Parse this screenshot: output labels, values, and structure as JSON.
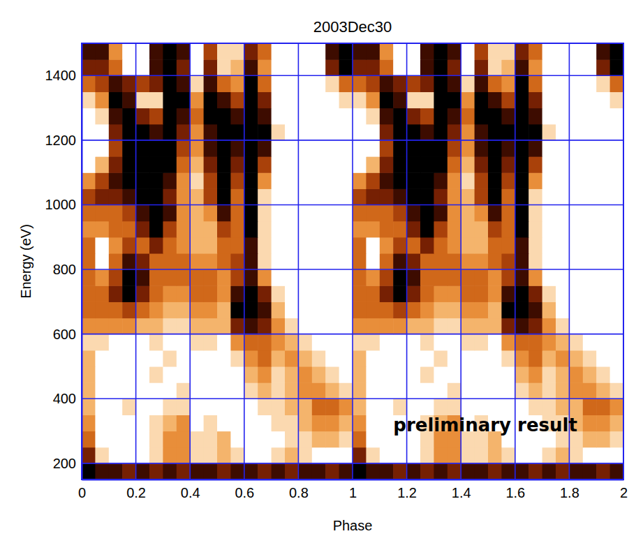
{
  "chart_data": {
    "type": "heatmap",
    "title": "2003Dec30",
    "x_label": "Phase",
    "y_label": "Energy (eV)",
    "xlim": [
      0,
      2
    ],
    "ylim": [
      150,
      1500
    ],
    "xticks": [
      0,
      0.2,
      0.4,
      0.6,
      0.8,
      1,
      1.2,
      1.4,
      1.6,
      1.8,
      2
    ],
    "yticks": [
      200,
      400,
      600,
      800,
      1000,
      1200,
      1400
    ],
    "grid": true,
    "annotations": [
      {
        "text": "preliminary result",
        "x": 1.49,
        "y": 315
      }
    ],
    "x_bins": [
      0,
      0.05,
      0.1,
      0.15,
      0.2,
      0.25,
      0.3,
      0.35,
      0.4,
      0.45,
      0.5,
      0.55,
      0.6,
      0.65,
      0.7,
      0.75,
      0.8,
      0.85,
      0.9,
      0.95,
      1,
      1.05,
      1.1,
      1.15,
      1.2,
      1.25,
      1.3,
      1.35,
      1.4,
      1.45,
      1.5,
      1.55,
      1.6,
      1.65,
      1.7,
      1.75,
      1.8,
      1.85,
      1.9,
      1.95,
      2
    ],
    "y_bins": [
      150,
      200,
      250,
      300,
      350,
      400,
      450,
      500,
      550,
      600,
      650,
      700,
      750,
      800,
      850,
      900,
      950,
      1000,
      1050,
      1100,
      1150,
      1200,
      1250,
      1300,
      1350,
      1400,
      1450,
      1500
    ],
    "values": [
      [
        1,
        2,
        2,
        3,
        2,
        3,
        2,
        3,
        2,
        2,
        3,
        2,
        2,
        3,
        2,
        3,
        2,
        2,
        3,
        2,
        1,
        2,
        2,
        3,
        2,
        3,
        2,
        3,
        2,
        2,
        3,
        2,
        2,
        3,
        2,
        3,
        2,
        2,
        3,
        2
      ],
      [
        3,
        8,
        9,
        9,
        9,
        8,
        6,
        6,
        8,
        8,
        7,
        8,
        9,
        9,
        8,
        7,
        8,
        9,
        9,
        9,
        3,
        8,
        9,
        9,
        9,
        8,
        6,
        6,
        8,
        8,
        7,
        8,
        9,
        9,
        8,
        7,
        8,
        9,
        9,
        9
      ],
      [
        5,
        9,
        9,
        9,
        9,
        8,
        6,
        6,
        8,
        8,
        7,
        9,
        9,
        9,
        9,
        8,
        8,
        7,
        7,
        8,
        5,
        9,
        9,
        9,
        9,
        8,
        6,
        6,
        8,
        8,
        7,
        9,
        9,
        9,
        9,
        8,
        8,
        7,
        7,
        8
      ],
      [
        6,
        9,
        9,
        9,
        9,
        8,
        7,
        6,
        9,
        8,
        9,
        9,
        9,
        9,
        8,
        8,
        7,
        6,
        6,
        7,
        6,
        9,
        9,
        9,
        9,
        8,
        7,
        6,
        9,
        8,
        9,
        9,
        9,
        9,
        8,
        8,
        7,
        6,
        6,
        7
      ],
      [
        7,
        9,
        9,
        8,
        9,
        9,
        8,
        8,
        9,
        9,
        9,
        9,
        9,
        8,
        8,
        7,
        7,
        5,
        5,
        6,
        7,
        9,
        9,
        8,
        9,
        9,
        8,
        8,
        9,
        9,
        9,
        9,
        9,
        8,
        8,
        7,
        7,
        5,
        5,
        6
      ],
      [
        7,
        9,
        9,
        9,
        9,
        9,
        9,
        8,
        9,
        9,
        9,
        9,
        8,
        7,
        8,
        7,
        6,
        6,
        7,
        8,
        7,
        9,
        9,
        9,
        9,
        9,
        9,
        8,
        9,
        9,
        9,
        9,
        8,
        7,
        8,
        7,
        6,
        6,
        7,
        8
      ],
      [
        7,
        9,
        9,
        9,
        9,
        8,
        9,
        9,
        9,
        9,
        9,
        9,
        7,
        6,
        8,
        7,
        6,
        7,
        8,
        9,
        7,
        9,
        9,
        9,
        9,
        8,
        9,
        9,
        9,
        9,
        9,
        9,
        7,
        6,
        8,
        7,
        6,
        7,
        8,
        9
      ],
      [
        7,
        9,
        9,
        9,
        9,
        9,
        8,
        9,
        9,
        9,
        9,
        8,
        6,
        5,
        7,
        6,
        7,
        8,
        9,
        9,
        7,
        9,
        9,
        9,
        9,
        9,
        8,
        9,
        9,
        9,
        9,
        8,
        6,
        5,
        7,
        6,
        7,
        8,
        9,
        9
      ],
      [
        8,
        8,
        9,
        9,
        9,
        8,
        9,
        9,
        8,
        8,
        9,
        6,
        5,
        5,
        6,
        7,
        8,
        9,
        9,
        9,
        8,
        8,
        9,
        9,
        9,
        8,
        9,
        9,
        8,
        8,
        9,
        6,
        5,
        5,
        6,
        7,
        8,
        9,
        9,
        9
      ],
      [
        6,
        6,
        6,
        6,
        7,
        7,
        8,
        8,
        7,
        7,
        7,
        3,
        2,
        3,
        6,
        8,
        9,
        9,
        9,
        9,
        6,
        6,
        6,
        6,
        7,
        7,
        8,
        8,
        7,
        7,
        7,
        3,
        2,
        3,
        6,
        8,
        9,
        9,
        9,
        9
      ],
      [
        5,
        5,
        5,
        4,
        5,
        6,
        7,
        7,
        6,
        6,
        7,
        1,
        1,
        2,
        7,
        9,
        9,
        9,
        9,
        9,
        5,
        5,
        5,
        4,
        5,
        6,
        7,
        7,
        6,
        6,
        7,
        1,
        1,
        2,
        7,
        9,
        9,
        9,
        9,
        9
      ],
      [
        5,
        5,
        3,
        1,
        3,
        5,
        6,
        6,
        5,
        5,
        6,
        2,
        1,
        3,
        8,
        9,
        9,
        9,
        9,
        9,
        5,
        5,
        3,
        1,
        3,
        5,
        6,
        6,
        5,
        5,
        6,
        2,
        1,
        3,
        8,
        9,
        9,
        9,
        9,
        9
      ],
      [
        5,
        6,
        4,
        1,
        2,
        5,
        5,
        5,
        5,
        5,
        6,
        4,
        2,
        6,
        9,
        9,
        9,
        9,
        9,
        9,
        5,
        6,
        4,
        1,
        2,
        5,
        5,
        5,
        5,
        5,
        6,
        4,
        2,
        6,
        9,
        9,
        9,
        9,
        9,
        9
      ],
      [
        5,
        9,
        5,
        2,
        3,
        5,
        5,
        5,
        6,
        6,
        5,
        4,
        2,
        8,
        9,
        9,
        9,
        9,
        9,
        9,
        5,
        9,
        5,
        2,
        3,
        5,
        5,
        5,
        6,
        6,
        5,
        4,
        2,
        8,
        9,
        9,
        9,
        9,
        9,
        9
      ],
      [
        5,
        9,
        6,
        4,
        5,
        3,
        5,
        6,
        7,
        7,
        5,
        5,
        2,
        8,
        9,
        9,
        9,
        9,
        9,
        9,
        5,
        9,
        6,
        4,
        5,
        3,
        5,
        6,
        7,
        7,
        5,
        5,
        2,
        8,
        9,
        9,
        9,
        9,
        9,
        9
      ],
      [
        6,
        6,
        5,
        5,
        3,
        1,
        4,
        6,
        7,
        7,
        4,
        5,
        1,
        8,
        9,
        9,
        9,
        9,
        9,
        9,
        6,
        6,
        5,
        5,
        3,
        1,
        4,
        6,
        7,
        7,
        4,
        5,
        1,
        8,
        9,
        9,
        9,
        9,
        9,
        9
      ],
      [
        5,
        5,
        5,
        4,
        2,
        1,
        2,
        6,
        7,
        6,
        2,
        5,
        1,
        8,
        9,
        9,
        9,
        9,
        9,
        9,
        5,
        5,
        5,
        4,
        2,
        1,
        2,
        6,
        7,
        6,
        2,
        5,
        1,
        8,
        9,
        9,
        9,
        9,
        9,
        9
      ],
      [
        4,
        3,
        3,
        2,
        1,
        1,
        3,
        6,
        7,
        4,
        1,
        5,
        1,
        8,
        9,
        9,
        9,
        9,
        9,
        9,
        4,
        3,
        3,
        2,
        1,
        1,
        3,
        6,
        7,
        4,
        1,
        5,
        1,
        8,
        9,
        9,
        9,
        9,
        9,
        9
      ],
      [
        6,
        4,
        2,
        1,
        1,
        1,
        2,
        6,
        8,
        4,
        1,
        4,
        1,
        6,
        9,
        9,
        9,
        9,
        9,
        9,
        6,
        4,
        2,
        1,
        1,
        1,
        2,
        6,
        8,
        4,
        1,
        4,
        1,
        6,
        9,
        9,
        9,
        9,
        9,
        9
      ],
      [
        9,
        7,
        3,
        1,
        1,
        1,
        1,
        5,
        7,
        3,
        1,
        3,
        1,
        4,
        9,
        9,
        9,
        9,
        9,
        9,
        9,
        7,
        3,
        1,
        1,
        1,
        1,
        5,
        7,
        3,
        1,
        3,
        1,
        4,
        9,
        9,
        9,
        9,
        9,
        9
      ],
      [
        9,
        9,
        4,
        1,
        1,
        1,
        1,
        4,
        6,
        2,
        1,
        2,
        1,
        2,
        9,
        9,
        9,
        9,
        9,
        9,
        9,
        9,
        4,
        1,
        1,
        1,
        1,
        4,
        6,
        2,
        1,
        2,
        1,
        2,
        9,
        9,
        9,
        9,
        9,
        9
      ],
      [
        9,
        9,
        3,
        1,
        1,
        2,
        1,
        3,
        6,
        2,
        1,
        1,
        1,
        1,
        8,
        9,
        9,
        9,
        9,
        9,
        9,
        9,
        3,
        1,
        1,
        2,
        1,
        3,
        6,
        2,
        1,
        1,
        1,
        1,
        8,
        9,
        9,
        9,
        9,
        9
      ],
      [
        9,
        8,
        2,
        1,
        3,
        4,
        1,
        2,
        5,
        1,
        1,
        2,
        1,
        2,
        9,
        9,
        9,
        9,
        9,
        9,
        9,
        8,
        2,
        1,
        3,
        4,
        1,
        2,
        5,
        1,
        1,
        2,
        1,
        2,
        9,
        9,
        9,
        9,
        9,
        9
      ],
      [
        8,
        6,
        1,
        2,
        8,
        8,
        1,
        1,
        6,
        1,
        2,
        4,
        1,
        3,
        9,
        9,
        9,
        9,
        9,
        8,
        8,
        6,
        1,
        2,
        8,
        8,
        1,
        1,
        6,
        1,
        2,
        4,
        1,
        3,
        9,
        9,
        9,
        9,
        9,
        8
      ],
      [
        5,
        4,
        2,
        3,
        4,
        3,
        1,
        2,
        8,
        2,
        5,
        6,
        1,
        5,
        9,
        9,
        9,
        9,
        8,
        5,
        5,
        4,
        2,
        3,
        4,
        3,
        1,
        2,
        8,
        2,
        5,
        6,
        1,
        5,
        9,
        9,
        9,
        9,
        8,
        5
      ],
      [
        3,
        3,
        5,
        9,
        9,
        2,
        1,
        3,
        9,
        3,
        8,
        7,
        2,
        6,
        9,
        9,
        9,
        9,
        3,
        1,
        3,
        3,
        5,
        9,
        9,
        2,
        1,
        3,
        9,
        3,
        8,
        7,
        2,
        6,
        9,
        9,
        9,
        9,
        3,
        1
      ],
      [
        2,
        2,
        6,
        9,
        9,
        2,
        1,
        2,
        9,
        4,
        8,
        8,
        3,
        5,
        9,
        9,
        9,
        9,
        2,
        1,
        2,
        2,
        6,
        9,
        9,
        2,
        1,
        2,
        9,
        4,
        8,
        8,
        3,
        5,
        9,
        9,
        9,
        9,
        2,
        1
      ]
    ]
  }
}
